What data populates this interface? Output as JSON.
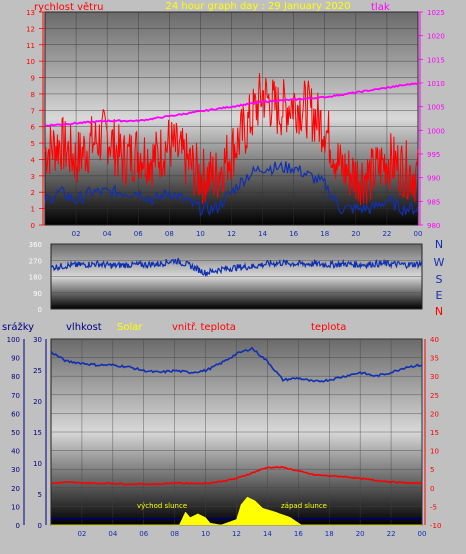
{
  "chart_data": [
    {
      "type": "line",
      "title": "24 hour graph day : 29 January 2020",
      "left_axis_label": "rychlost větru",
      "right_axis_label": "tlak",
      "x_ticks": [
        "02",
        "04",
        "06",
        "08",
        "10",
        "12",
        "14",
        "16",
        "18",
        "20",
        "22",
        "00"
      ],
      "x_range_hours": [
        0,
        24
      ],
      "y_left_ticks": [
        "0",
        "1",
        "2",
        "3",
        "4",
        "5",
        "6",
        "7",
        "8",
        "9",
        "10",
        "11",
        "12",
        "13"
      ],
      "y_left_range": [
        0,
        13
      ],
      "y_right_ticks": [
        "980",
        "985",
        "990",
        "995",
        "1000",
        "1005",
        "1010",
        "1015",
        "1020",
        "1025"
      ],
      "y_right_range": [
        980,
        1025
      ],
      "series": [
        {
          "color": "#ff0000",
          "role": "gust",
          "x": [
            0,
            1,
            2,
            3,
            4,
            5,
            6,
            7,
            8,
            9,
            10,
            11,
            12,
            13,
            14,
            15,
            16,
            17,
            18,
            19,
            20,
            21,
            22,
            23,
            24
          ],
          "values": [
            4.5,
            5,
            4,
            5,
            5.5,
            4,
            4.5,
            4,
            5,
            4,
            3,
            3,
            4.5,
            6,
            8,
            7,
            7.5,
            7,
            6,
            3.5,
            3,
            3,
            4,
            3.5,
            3
          ]
        },
        {
          "color": "#1030b0",
          "role": "average",
          "x": [
            0,
            1,
            2,
            3,
            4,
            5,
            6,
            7,
            8,
            9,
            10,
            11,
            12,
            13,
            14,
            15,
            16,
            17,
            18,
            19,
            20,
            21,
            22,
            23,
            24
          ],
          "values": [
            1.5,
            2,
            1.5,
            2,
            2,
            2,
            2,
            1.5,
            2,
            1.5,
            1,
            1,
            2,
            3,
            3.5,
            3.5,
            3.5,
            3,
            2.5,
            1,
            1,
            1,
            1.5,
            1,
            1
          ]
        },
        {
          "color": "#ff00ff",
          "role": "pressure",
          "x": [
            0,
            2,
            4,
            6,
            8,
            10,
            12,
            14,
            16,
            18,
            20,
            22,
            24
          ],
          "values": [
            1001,
            1001.5,
            1002,
            1002,
            1003,
            1004,
            1005,
            1006,
            1006.5,
            1007,
            1008,
            1009,
            1010
          ]
        }
      ]
    },
    {
      "type": "line",
      "direction_letters": [
        "N",
        "W",
        "S",
        "E",
        "N"
      ],
      "y_ticks": [
        "0",
        "90",
        "180",
        "270",
        "360"
      ],
      "y_range": [
        0,
        360
      ],
      "x_range_hours": [
        0,
        24
      ],
      "series": [
        {
          "color": "#1030b0",
          "x": [
            0,
            1,
            2,
            3,
            4,
            5,
            6,
            7,
            8,
            9,
            10,
            11,
            12,
            13,
            14,
            15,
            16,
            17,
            18,
            19,
            20,
            21,
            22,
            23,
            24
          ],
          "values": [
            230,
            240,
            245,
            250,
            240,
            245,
            245,
            250,
            270,
            240,
            200,
            220,
            230,
            235,
            250,
            255,
            250,
            250,
            245,
            250,
            245,
            250,
            250,
            245,
            250
          ]
        }
      ]
    },
    {
      "type": "line",
      "labels": [
        "srážky",
        "vlhkost",
        "Solar",
        "vnitř. teplota",
        "teplota"
      ],
      "annotations": [
        "východ slunce",
        "západ slunce"
      ],
      "x_ticks": [
        "02",
        "04",
        "06",
        "08",
        "10",
        "12",
        "14",
        "16",
        "18",
        "20",
        "22",
        "00"
      ],
      "x_range_hours": [
        0,
        24
      ],
      "y_left_ticks": [
        "0",
        "10",
        "20",
        "30",
        "40",
        "50",
        "60",
        "70",
        "80",
        "90",
        "100"
      ],
      "y_left_range": [
        0,
        100
      ],
      "y_left2_ticks": [
        "0",
        "5",
        "10",
        "15",
        "20",
        "25",
        "30"
      ],
      "y_left2_range": [
        0,
        30
      ],
      "y_right_ticks": [
        "-10",
        "-5",
        "0",
        "5",
        "10",
        "15",
        "20",
        "25",
        "30",
        "35",
        "40"
      ],
      "y_right_range": [
        -10,
        40
      ],
      "series": [
        {
          "color": "#1030b0",
          "role": "humidity",
          "x": [
            0,
            1,
            2,
            3,
            4,
            5,
            6,
            7,
            8,
            9,
            10,
            11,
            12,
            13,
            14,
            15,
            16,
            17,
            18,
            19,
            20,
            21,
            22,
            23,
            24
          ],
          "values": [
            93,
            88,
            87,
            86,
            86,
            85,
            83,
            82,
            83,
            82,
            83,
            87,
            92,
            95,
            88,
            78,
            79,
            77,
            78,
            80,
            82,
            80,
            82,
            85,
            86
          ]
        },
        {
          "color": "#ff0000",
          "role": "temperature",
          "x": [
            0,
            1,
            2,
            3,
            4,
            5,
            6,
            7,
            8,
            9,
            10,
            11,
            12,
            13,
            14,
            15,
            16,
            17,
            18,
            19,
            20,
            21,
            22,
            23,
            24
          ],
          "values": [
            1.2,
            1.5,
            1.3,
            1.2,
            1.2,
            1.0,
            1.0,
            1.0,
            1.3,
            1.2,
            1.2,
            1.7,
            2.5,
            4,
            5.5,
            5.5,
            4.5,
            3.5,
            3.2,
            3,
            2.5,
            2,
            1.6,
            1.3,
            1.2
          ]
        },
        {
          "color": "#ffff00",
          "role": "solar",
          "x": [
            0,
            7.2,
            8.3,
            8.7,
            9,
            9.5,
            10,
            10.3,
            11,
            12,
            12.3,
            12.7,
            13.2,
            13.7,
            14.5,
            15.5,
            16.2,
            24
          ],
          "values": [
            0,
            0,
            0,
            7,
            4,
            6,
            4,
            1,
            0,
            3,
            11,
            15,
            13,
            9,
            7,
            4,
            0,
            0
          ]
        },
        {
          "color": "#000060",
          "role": "rain",
          "x": [
            0,
            24
          ],
          "values": [
            1,
            1
          ]
        }
      ]
    }
  ]
}
